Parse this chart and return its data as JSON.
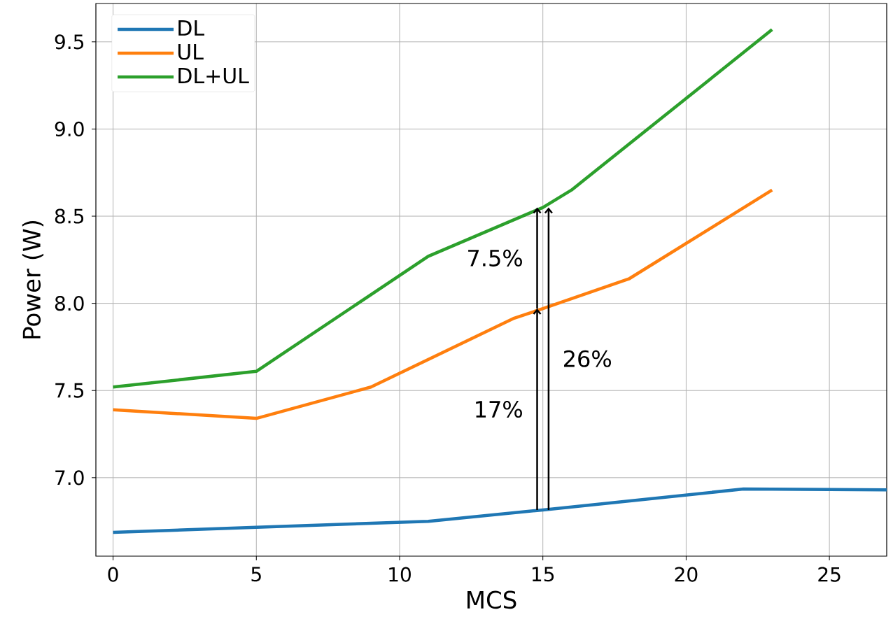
{
  "chart_data": {
    "type": "line",
    "xlabel": "MCS",
    "ylabel": "Power (W)",
    "series": [
      {
        "name": "DL",
        "color": "#1f77b4",
        "x": [
          0,
          5,
          11,
          15,
          22,
          27
        ],
        "values": [
          6.686,
          6.715,
          6.75,
          6.815,
          6.935,
          6.93
        ]
      },
      {
        "name": "UL",
        "color": "#ff7f0e",
        "x": [
          0,
          5,
          9,
          14,
          15,
          18,
          23
        ],
        "values": [
          7.39,
          7.34,
          7.52,
          7.915,
          7.97,
          8.14,
          8.65
        ]
      },
      {
        "name": "DL+UL",
        "color": "#2ca02c",
        "x": [
          0,
          5,
          11,
          15,
          16,
          23
        ],
        "values": [
          7.52,
          7.61,
          8.27,
          8.55,
          8.65,
          9.57
        ]
      }
    ],
    "annotations": [
      "7.5%",
      "17%",
      "26%"
    ],
    "xlim": [
      -0.6,
      27
    ],
    "ylim": [
      6.55,
      9.72
    ],
    "xticks": [
      0,
      5,
      10,
      15,
      20,
      25
    ],
    "yticks": [
      {
        "value": 7,
        "label": "7.0"
      },
      7.5,
      {
        "value": 8,
        "label": "8.0"
      },
      8.5,
      {
        "value": 9,
        "label": "9.0"
      },
      9.5
    ],
    "grid": true,
    "legend": "top left",
    "marker": "none",
    "line_style": "solid"
  }
}
